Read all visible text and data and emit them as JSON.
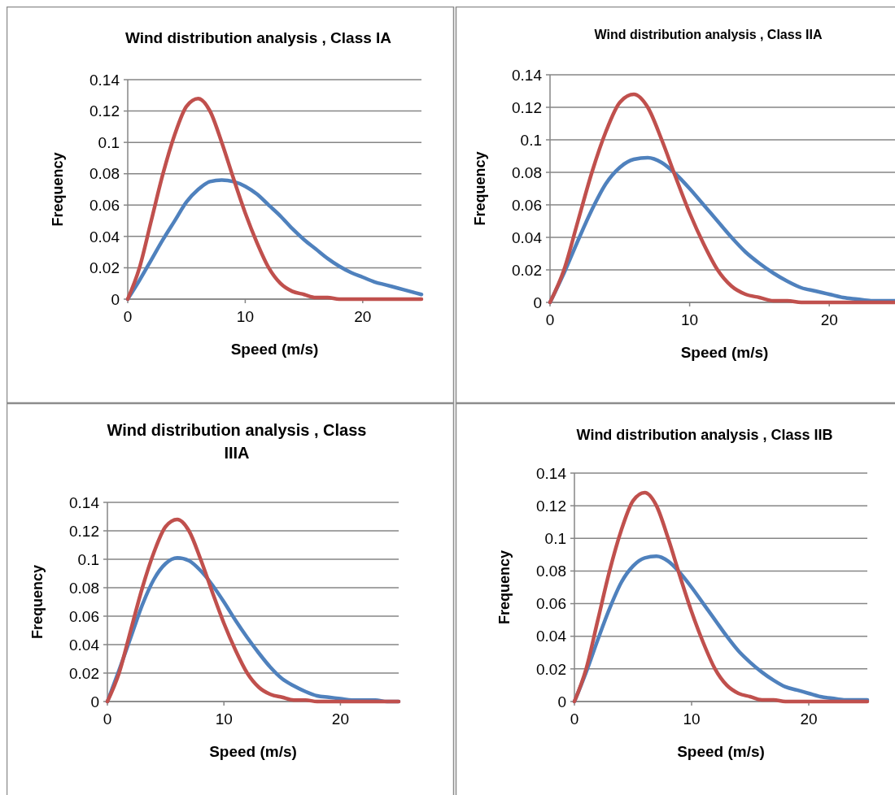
{
  "chart_data": [
    {
      "type": "line",
      "title": "Wind distribution analysis , Class IA",
      "xlabel": "Speed (m/s)",
      "ylabel": "Frequency",
      "x": [
        0,
        1,
        2,
        3,
        4,
        5,
        6,
        7,
        8,
        9,
        10,
        11,
        12,
        13,
        14,
        15,
        16,
        17,
        18,
        19,
        20,
        21,
        22,
        23,
        24,
        25
      ],
      "xlim": [
        0,
        25
      ],
      "xticks": [
        0,
        10,
        20
      ],
      "ylim": [
        0,
        0.14
      ],
      "yticks": [
        0,
        0.02,
        0.04,
        0.06,
        0.08,
        0.1,
        0.12,
        0.14
      ],
      "grid": "y",
      "marker": "none",
      "line_style": "solid",
      "series": [
        {
          "color": "#4f81bd",
          "values": [
            0,
            0.012,
            0.025,
            0.038,
            0.05,
            0.062,
            0.07,
            0.075,
            0.076,
            0.075,
            0.072,
            0.067,
            0.06,
            0.053,
            0.045,
            0.038,
            0.032,
            0.026,
            0.021,
            0.017,
            0.014,
            0.011,
            0.009,
            0.007,
            0.005,
            0.003
          ]
        },
        {
          "color": "#c0504d",
          "values": [
            0,
            0.02,
            0.05,
            0.08,
            0.105,
            0.123,
            0.128,
            0.12,
            0.1,
            0.077,
            0.055,
            0.036,
            0.02,
            0.01,
            0.005,
            0.003,
            0.001,
            0.001,
            0,
            0,
            0,
            0,
            0,
            0,
            0,
            0
          ]
        }
      ]
    },
    {
      "type": "line",
      "title": "Wind distribution analysis , Class IIA",
      "xlabel": "Speed (m/s)",
      "ylabel": "Frequency",
      "x": [
        0,
        1,
        2,
        3,
        4,
        5,
        6,
        7,
        8,
        9,
        10,
        11,
        12,
        13,
        14,
        15,
        16,
        17,
        18,
        19,
        20,
        21,
        22,
        23,
        24,
        25
      ],
      "xlim": [
        0,
        25
      ],
      "xticks": [
        0,
        10,
        20
      ],
      "ylim": [
        0,
        0.14
      ],
      "yticks": [
        0,
        0.02,
        0.04,
        0.06,
        0.08,
        0.1,
        0.12,
        0.14
      ],
      "grid": "y",
      "marker": "none",
      "line_style": "solid",
      "series": [
        {
          "color": "#4f81bd",
          "values": [
            0,
            0.018,
            0.038,
            0.057,
            0.073,
            0.083,
            0.088,
            0.089,
            0.086,
            0.079,
            0.07,
            0.06,
            0.05,
            0.04,
            0.031,
            0.024,
            0.018,
            0.013,
            0.009,
            0.007,
            0.005,
            0.003,
            0.002,
            0.001,
            0.001,
            0.001
          ]
        },
        {
          "color": "#c0504d",
          "values": [
            0,
            0.02,
            0.05,
            0.08,
            0.105,
            0.123,
            0.128,
            0.12,
            0.1,
            0.077,
            0.055,
            0.036,
            0.02,
            0.01,
            0.005,
            0.003,
            0.001,
            0.001,
            0,
            0,
            0,
            0,
            0,
            0,
            0,
            0
          ]
        }
      ]
    },
    {
      "type": "line",
      "title": "Wind distribution analysis , Class IIIA",
      "xlabel": "Speed (m/s)",
      "ylabel": "Frequency",
      "x": [
        0,
        1,
        2,
        3,
        4,
        5,
        6,
        7,
        8,
        9,
        10,
        11,
        12,
        13,
        14,
        15,
        16,
        17,
        18,
        19,
        20,
        21,
        22,
        23,
        24,
        25
      ],
      "xlim": [
        0,
        25
      ],
      "xticks": [
        0,
        10,
        20
      ],
      "ylim": [
        0,
        0.14
      ],
      "yticks": [
        0,
        0.02,
        0.04,
        0.06,
        0.08,
        0.1,
        0.12,
        0.14
      ],
      "grid": "y",
      "marker": "none",
      "line_style": "solid",
      "series": [
        {
          "color": "#4f81bd",
          "values": [
            0,
            0.022,
            0.045,
            0.068,
            0.086,
            0.097,
            0.101,
            0.099,
            0.092,
            0.082,
            0.07,
            0.057,
            0.045,
            0.034,
            0.024,
            0.016,
            0.011,
            0.007,
            0.004,
            0.003,
            0.002,
            0.001,
            0.001,
            0.001,
            0,
            0
          ]
        },
        {
          "color": "#c0504d",
          "values": [
            0,
            0.02,
            0.05,
            0.08,
            0.105,
            0.123,
            0.128,
            0.12,
            0.1,
            0.077,
            0.055,
            0.036,
            0.02,
            0.01,
            0.005,
            0.003,
            0.001,
            0.001,
            0,
            0,
            0,
            0,
            0,
            0,
            0,
            0
          ]
        }
      ]
    },
    {
      "type": "line",
      "title": "Wind distribution analysis , Class IIB",
      "xlabel": "Speed (m/s)",
      "ylabel": "Frequency",
      "x": [
        0,
        1,
        2,
        3,
        4,
        5,
        6,
        7,
        8,
        9,
        10,
        11,
        12,
        13,
        14,
        15,
        16,
        17,
        18,
        19,
        20,
        21,
        22,
        23,
        24,
        25
      ],
      "xlim": [
        0,
        25
      ],
      "xticks": [
        0,
        10,
        20
      ],
      "ylim": [
        0,
        0.14
      ],
      "yticks": [
        0,
        0.02,
        0.04,
        0.06,
        0.08,
        0.1,
        0.12,
        0.14
      ],
      "grid": "y",
      "marker": "none",
      "line_style": "solid",
      "series": [
        {
          "color": "#4f81bd",
          "values": [
            0,
            0.018,
            0.038,
            0.057,
            0.073,
            0.083,
            0.088,
            0.089,
            0.086,
            0.079,
            0.07,
            0.06,
            0.05,
            0.04,
            0.031,
            0.024,
            0.018,
            0.013,
            0.009,
            0.007,
            0.005,
            0.003,
            0.002,
            0.001,
            0.001,
            0.001
          ]
        },
        {
          "color": "#c0504d",
          "values": [
            0,
            0.02,
            0.05,
            0.08,
            0.105,
            0.123,
            0.128,
            0.12,
            0.1,
            0.077,
            0.055,
            0.036,
            0.02,
            0.01,
            0.005,
            0.003,
            0.001,
            0.001,
            0,
            0,
            0,
            0,
            0,
            0,
            0,
            0
          ]
        }
      ]
    }
  ]
}
